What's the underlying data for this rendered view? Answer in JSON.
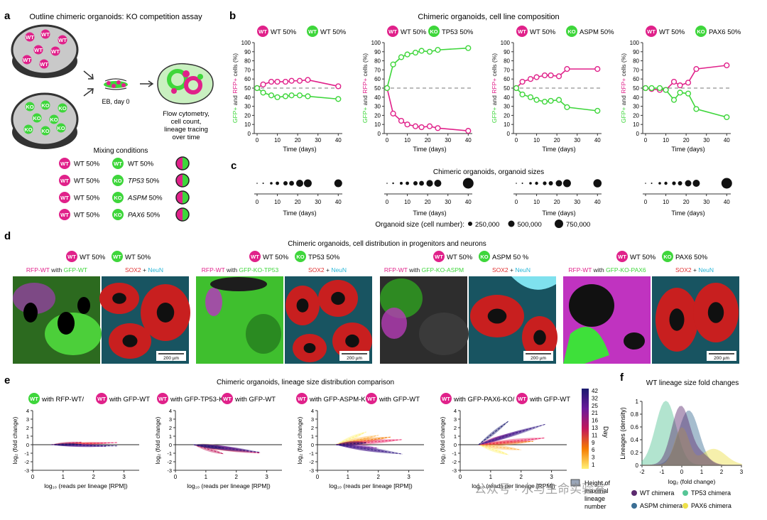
{
  "colors": {
    "magenta": "#e0218a",
    "green": "#3ed63b",
    "grey_dash": "#777777",
    "pink_bg": "#f2c9dc",
    "light_green": "#c9f0c0"
  },
  "panel_a": {
    "letter": "a",
    "title": "Outline chimeric organoids: KO competition assay",
    "eb_label": "EB, day 0",
    "flow_lines": [
      "Flow cytometry,",
      "cell count,",
      "lineage tracing",
      "over time"
    ],
    "mixing_title": "Mixing conditions",
    "conditions": [
      {
        "left": "WT 50%",
        "right_badge": "WT",
        "right_gene": "",
        "right_rest": "WT 50%"
      },
      {
        "left": "WT 50%",
        "right_badge": "KO",
        "right_gene": "TP53",
        "right_rest": " 50%"
      },
      {
        "left": "WT 50%",
        "right_badge": "KO",
        "right_gene": "ASPM",
        "right_rest": " 50%"
      },
      {
        "left": "WT 50%",
        "right_badge": "KO",
        "right_gene": "PAX6",
        "right_rest": " 50%"
      }
    ],
    "dish_top_badge": "WT",
    "dish_bottom_badge": "KO"
  },
  "panel_b": {
    "letter": "b",
    "title": "Chimeric organoids, cell line composition",
    "ylabel_parts": [
      "GFP+",
      " and ",
      "RFP+",
      " cells (%)"
    ],
    "xlabel": "Time (days)",
    "yticks": [
      "0",
      "10",
      "20",
      "30",
      "40",
      "50",
      "60",
      "70",
      "80",
      "90",
      "100"
    ],
    "xticks": [
      "0",
      "10",
      "20",
      "30",
      "40"
    ],
    "subplots": [
      {
        "legend": [
          {
            "badge": "WT",
            "text": "WT 50%"
          },
          {
            "badge": "WT",
            "text": "WT 50%",
            "green": true
          }
        ]
      },
      {
        "legend": [
          {
            "badge": "WT",
            "text": "WT 50%"
          },
          {
            "badge": "KO",
            "text": "TP53 50%",
            "green": true
          }
        ]
      },
      {
        "legend": [
          {
            "badge": "WT",
            "text": "WT 50%"
          },
          {
            "badge": "KO",
            "text": "ASPM 50%",
            "green": true
          }
        ]
      },
      {
        "legend": [
          {
            "badge": "WT",
            "text": "WT 50%"
          },
          {
            "badge": "KO",
            "text": "PAX6 50%",
            "green": true
          }
        ]
      }
    ]
  },
  "panel_c": {
    "letter": "c",
    "title": "Chimeric organoids, organoid sizes",
    "xlabel": "Time (days)",
    "xticks": [
      "0",
      "10",
      "20",
      "30",
      "40"
    ],
    "size_legend_label": "Organoid size (cell number):",
    "size_legend": [
      "250,000",
      "500,000",
      "750,000"
    ]
  },
  "panel_d": {
    "letter": "d",
    "title": "Chimeric organoids, cell distribution in progenitors and neurons",
    "groups": [
      {
        "badge2": "WT",
        "text2": "WT 50%",
        "left_label_a": "RFP-WT",
        "left_label_b": " with ",
        "left_label_c": "GFP-WT",
        "scale": "200 µm"
      },
      {
        "badge2": "KO",
        "text2": "TP53 50%",
        "left_label_a": "RFP-WT",
        "left_label_b": " with ",
        "left_label_c": "GFP-KO-TP53",
        "scale": "200 µm"
      },
      {
        "badge2": "KO",
        "text2": "ASPM 50 %",
        "left_label_a": "RFP-WT",
        "left_label_b": " with ",
        "left_label_c": "GFP-KO-ASPM",
        "scale": "200 µm"
      },
      {
        "badge2": "KO",
        "text2": "PAX6 50%",
        "left_label_a": "RFP-WT",
        "left_label_b": " with ",
        "left_label_c": "GFP-KO-PAX6",
        "scale": "200 µm"
      }
    ],
    "badge1": "WT",
    "text1": "WT 50%",
    "right_label_a": "SOX2",
    "right_label_b": " + ",
    "right_label_c": "NeuN"
  },
  "panel_e": {
    "letter": "e",
    "title": "Chimeric organoids, lineage size distribution comparison",
    "legend_segments": [
      {
        "badge": "WT",
        "green": true,
        "text": "with RFP-WT/"
      },
      {
        "badge": "WT",
        "green": false,
        "text": "with GFP-WT"
      },
      {
        "badge": "WT",
        "green": false,
        "text": "with GFP-TP53-KO/"
      },
      {
        "badge": "WT",
        "green": false,
        "text": "with GFP-WT"
      },
      {
        "badge": "WT",
        "green": false,
        "text": "with GFP-ASPM-KO/"
      },
      {
        "badge": "WT",
        "green": false,
        "text": "with GFP-WT"
      },
      {
        "badge": "WT",
        "green": false,
        "text": "with GFP-PAX6-KO/"
      },
      {
        "badge": "WT",
        "green": false,
        "text": "with GFP-WT"
      }
    ],
    "ylabel": "log₂ (fold change)",
    "xlabel": "log₁₀ (reads per lineage [RPM])",
    "yticks": [
      "4",
      "3",
      "2",
      "1",
      "0",
      "-1",
      "-2",
      "-3"
    ],
    "xticks": [
      "0",
      "1",
      "2",
      "3"
    ],
    "colorbar_ticks": [
      "42",
      "32",
      "25",
      "21",
      "16",
      "13",
      "11",
      "9",
      "6",
      "3",
      "1"
    ],
    "colorbar_label": "Day",
    "height_legend": [
      "Height of",
      "maximal",
      "lineage",
      "number"
    ]
  },
  "panel_f": {
    "letter": "f",
    "title": "WT lineage size fold changes",
    "ylabel": "Lineages (density)",
    "xlabel": "log₂ (fold change)",
    "yticks": [
      "0",
      "0.2",
      "0.4",
      "0.6",
      "0.8",
      "1"
    ],
    "xticks": [
      "-2",
      "-1",
      "0",
      "1",
      "2",
      "3"
    ],
    "legend": [
      {
        "name": "WT chimera",
        "color": "#5b2a6e"
      },
      {
        "name": "TP53 chimera",
        "color": "#56c596"
      },
      {
        "name": "ASPM chimera",
        "color": "#3b6e94"
      },
      {
        "name": "PAX6 chimera",
        "color": "#ede04a"
      }
    ]
  },
  "watermark": "公众号 · 水与生命实验室",
  "chart_data": [
    {
      "type": "line",
      "xlabel": "Time (days)",
      "ylabel": "GFP+ and RFP+ cells (%)",
      "ylim": [
        0,
        100
      ],
      "xlim": [
        0,
        42
      ],
      "x": [
        0,
        3,
        7,
        10,
        14,
        17,
        21,
        25,
        40
      ],
      "series": [
        {
          "name": "WT 50%",
          "color": "#e0218a",
          "values": [
            50,
            54,
            57,
            57,
            57,
            58,
            58,
            59,
            52
          ]
        },
        {
          "name": "WT 50%",
          "color": "#3ed63b",
          "values": [
            50,
            45,
            42,
            40,
            41,
            42,
            42,
            41,
            38
          ]
        }
      ]
    },
    {
      "type": "line",
      "xlabel": "Time (days)",
      "ylabel": "GFP+ and RFP+ cells (%)",
      "ylim": [
        0,
        100
      ],
      "xlim": [
        0,
        42
      ],
      "x": [
        0,
        3,
        7,
        10,
        14,
        17,
        21,
        25,
        40
      ],
      "series": [
        {
          "name": "WT 50%",
          "color": "#e0218a",
          "values": [
            50,
            22,
            14,
            10,
            8,
            7,
            8,
            6,
            3
          ]
        },
        {
          "name": "TP53 50%",
          "color": "#3ed63b",
          "values": [
            50,
            76,
            84,
            87,
            89,
            91,
            90,
            92,
            94
          ]
        }
      ]
    },
    {
      "type": "line",
      "xlabel": "Time (days)",
      "ylabel": "GFP+ and RFP+ cells (%)",
      "ylim": [
        0,
        100
      ],
      "xlim": [
        0,
        42
      ],
      "x": [
        0,
        3,
        7,
        10,
        14,
        17,
        21,
        25,
        40
      ],
      "series": [
        {
          "name": "WT 50%",
          "color": "#e0218a",
          "values": [
            50,
            57,
            60,
            62,
            64,
            64,
            63,
            71,
            71
          ]
        },
        {
          "name": "ASPM 50%",
          "color": "#3ed63b",
          "values": [
            50,
            43,
            40,
            37,
            35,
            36,
            37,
            29,
            25
          ]
        }
      ]
    },
    {
      "type": "line",
      "xlabel": "Time (days)",
      "ylabel": "GFP+ and RFP+ cells (%)",
      "ylim": [
        0,
        100
      ],
      "xlim": [
        0,
        42
      ],
      "x": [
        0,
        3,
        7,
        10,
        14,
        17,
        21,
        25,
        40
      ],
      "series": [
        {
          "name": "WT 50%",
          "color": "#e0218a",
          "values": [
            50,
            49,
            48,
            48,
            57,
            53,
            56,
            71,
            75
          ]
        },
        {
          "name": "PAX6 50%",
          "color": "#3ed63b",
          "values": [
            50,
            50,
            50,
            48,
            37,
            45,
            44,
            27,
            18
          ]
        }
      ]
    }
  ]
}
